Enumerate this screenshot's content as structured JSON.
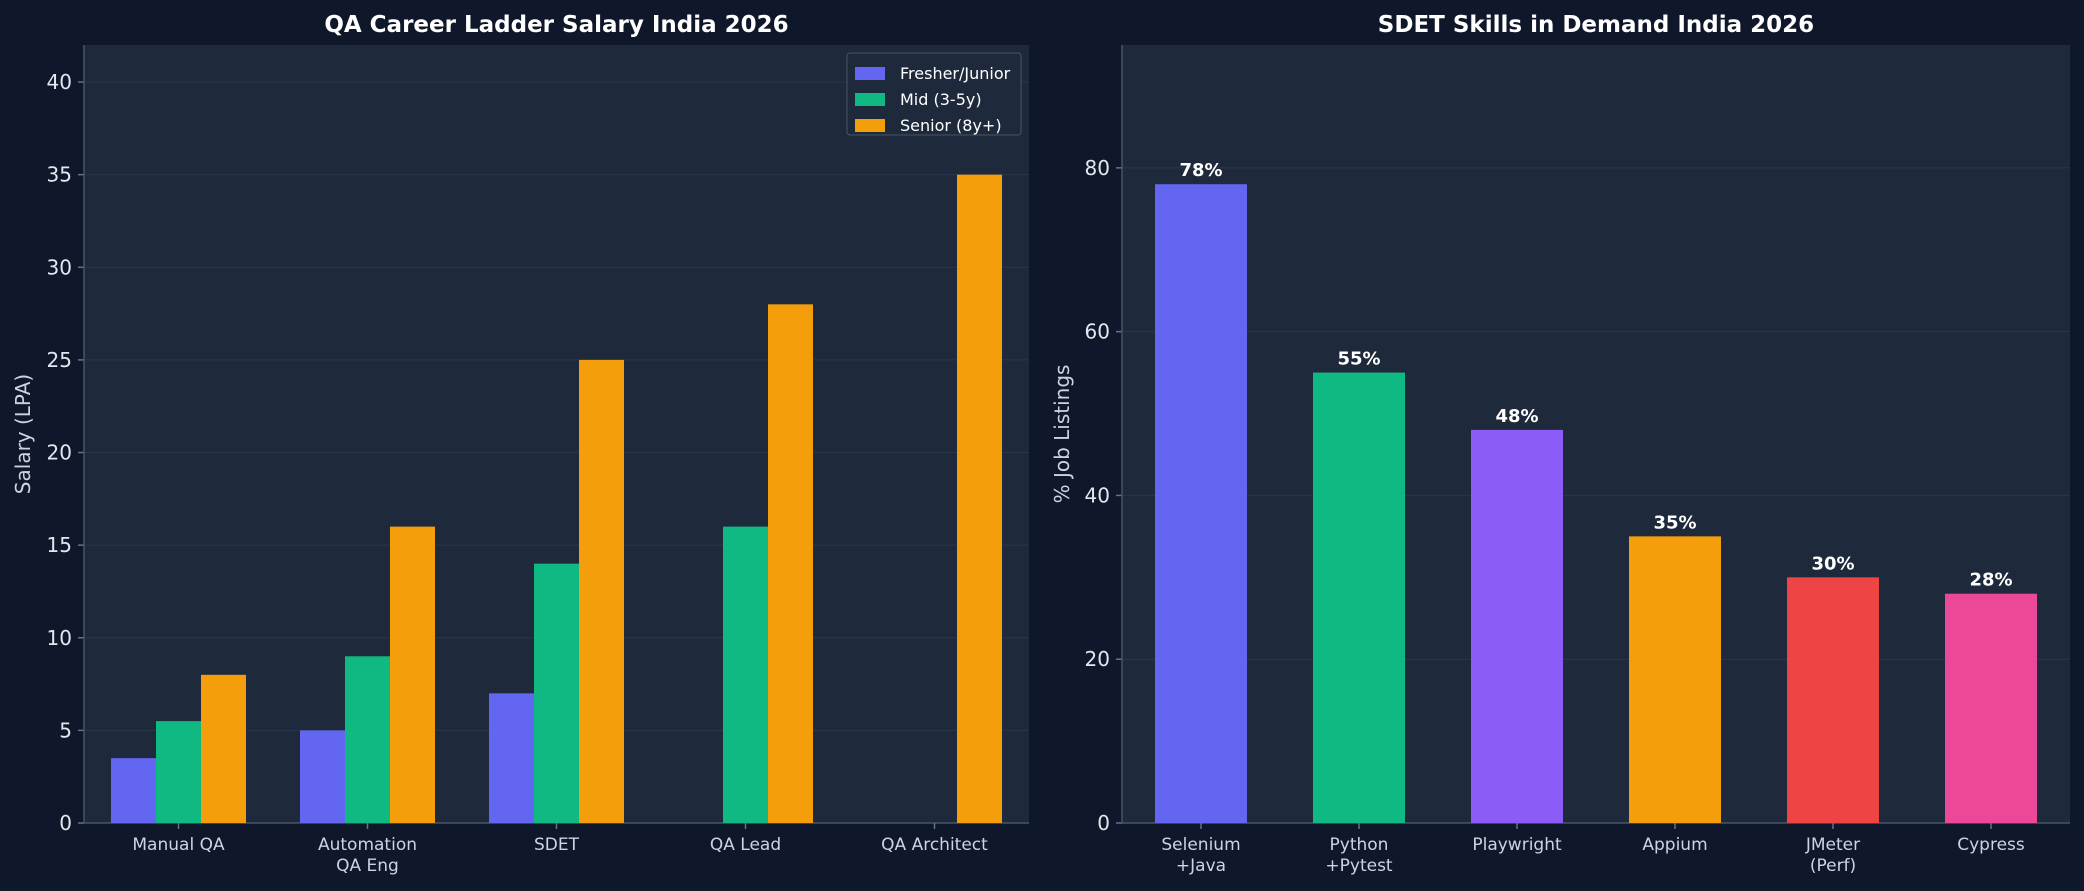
{
  "chart_data": [
    {
      "type": "bar",
      "title": "QA Career Ladder Salary India 2026",
      "xlabel": "",
      "ylabel": "Salary (LPA)",
      "ylim": [
        0,
        42
      ],
      "yticks": [
        0,
        5,
        10,
        15,
        20,
        25,
        30,
        35,
        40
      ],
      "grid": true,
      "legend_position": "top-right",
      "categories": [
        [
          "Manual QA"
        ],
        [
          "Automation",
          "QA Eng"
        ],
        [
          "SDET"
        ],
        [
          "QA Lead"
        ],
        [
          "QA Architect"
        ]
      ],
      "series": [
        {
          "name": "Fresher/Junior",
          "color": "#6366f1",
          "values": [
            3.5,
            5,
            7,
            null,
            null
          ]
        },
        {
          "name": "Mid (3-5y)",
          "color": "#10b981",
          "values": [
            5.5,
            9,
            14,
            16,
            null
          ]
        },
        {
          "name": "Senior (8y+)",
          "color": "#f59e0b",
          "values": [
            8,
            16,
            25,
            28,
            35
          ]
        }
      ]
    },
    {
      "type": "bar",
      "title": "SDET Skills in Demand India 2026",
      "xlabel": "",
      "ylabel": "% Job Listings",
      "ylim": [
        0,
        95
      ],
      "yticks": [
        0,
        20,
        40,
        60,
        80
      ],
      "grid": true,
      "categories": [
        [
          "Selenium",
          "+Java"
        ],
        [
          "Python",
          "+Pytest"
        ],
        [
          "Playwright"
        ],
        [
          "Appium"
        ],
        [
          "JMeter",
          "(Perf)"
        ],
        [
          "Cypress"
        ]
      ],
      "values": [
        78,
        55,
        48,
        35,
        30,
        28
      ],
      "data_labels": [
        "78%",
        "55%",
        "48%",
        "35%",
        "30%",
        "28%"
      ],
      "colors": [
        "#6366f1",
        "#10b981",
        "#8b5cf6",
        "#f59e0b",
        "#ef4444",
        "#ec4899"
      ]
    }
  ]
}
